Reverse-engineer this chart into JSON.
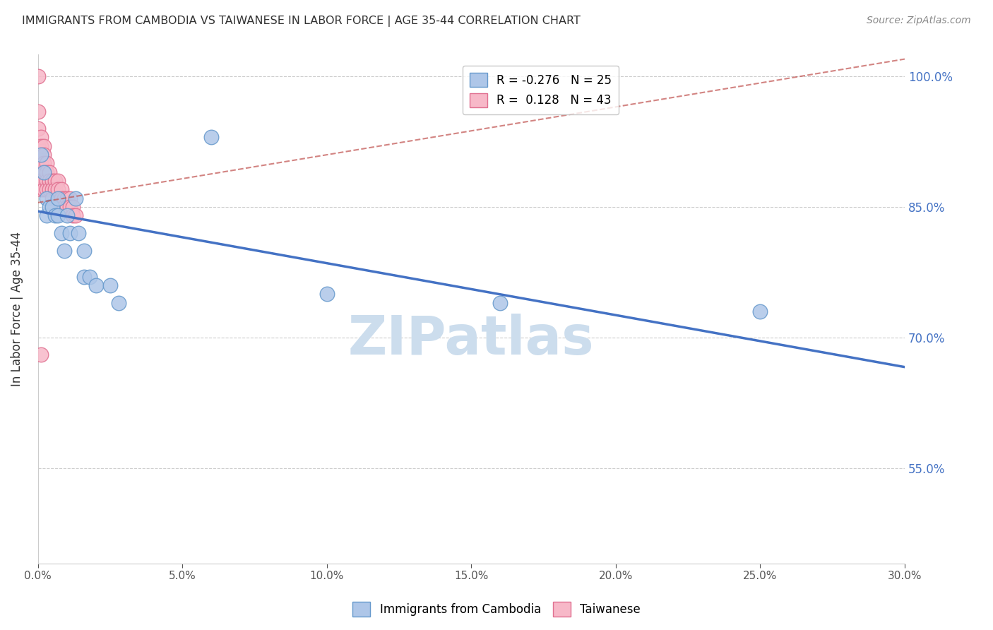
{
  "title": "IMMIGRANTS FROM CAMBODIA VS TAIWANESE IN LABOR FORCE | AGE 35-44 CORRELATION CHART",
  "source": "Source: ZipAtlas.com",
  "ylabel": "In Labor Force | Age 35-44",
  "xlim": [
    0.0,
    0.3
  ],
  "ylim": [
    0.44,
    1.025
  ],
  "yticks": [
    0.55,
    0.7,
    0.85,
    1.0
  ],
  "xticks": [
    0.0,
    0.05,
    0.1,
    0.15,
    0.2,
    0.25,
    0.3
  ],
  "legend_r_cambodia": "-0.276",
  "legend_n_cambodia": "25",
  "legend_r_taiwanese": "0.128",
  "legend_n_taiwanese": "43",
  "cambodia_color": "#aec6e8",
  "cambodia_edge": "#6699cc",
  "taiwanese_color": "#f7b8c8",
  "taiwanese_edge": "#e07090",
  "trendline_cambodia_color": "#4472c4",
  "trendline_taiwanese_color": "#c0504d",
  "cambodia_x": [
    0.001,
    0.002,
    0.003,
    0.003,
    0.004,
    0.005,
    0.006,
    0.007,
    0.007,
    0.008,
    0.009,
    0.01,
    0.011,
    0.013,
    0.014,
    0.016,
    0.016,
    0.018,
    0.02,
    0.025,
    0.028,
    0.06,
    0.1,
    0.16,
    0.25
  ],
  "cambodia_y": [
    0.91,
    0.89,
    0.86,
    0.84,
    0.85,
    0.85,
    0.84,
    0.86,
    0.84,
    0.82,
    0.8,
    0.84,
    0.82,
    0.86,
    0.82,
    0.8,
    0.77,
    0.77,
    0.76,
    0.76,
    0.74,
    0.93,
    0.75,
    0.74,
    0.73
  ],
  "taiwanese_x": [
    0.0,
    0.0,
    0.0,
    0.0,
    0.0,
    0.001,
    0.001,
    0.001,
    0.001,
    0.001,
    0.001,
    0.001,
    0.002,
    0.002,
    0.002,
    0.002,
    0.002,
    0.003,
    0.003,
    0.003,
    0.003,
    0.004,
    0.004,
    0.004,
    0.005,
    0.005,
    0.005,
    0.006,
    0.006,
    0.007,
    0.007,
    0.008,
    0.008,
    0.009,
    0.009,
    0.01,
    0.01,
    0.011,
    0.011,
    0.012,
    0.012,
    0.013,
    0.001
  ],
  "taiwanese_y": [
    1.0,
    0.96,
    0.94,
    0.92,
    0.89,
    0.93,
    0.92,
    0.91,
    0.9,
    0.89,
    0.88,
    0.87,
    0.92,
    0.91,
    0.9,
    0.88,
    0.87,
    0.9,
    0.89,
    0.88,
    0.87,
    0.89,
    0.88,
    0.87,
    0.88,
    0.87,
    0.86,
    0.88,
    0.87,
    0.88,
    0.87,
    0.87,
    0.86,
    0.86,
    0.85,
    0.86,
    0.85,
    0.86,
    0.85,
    0.85,
    0.84,
    0.84,
    0.68
  ],
  "trendline_cam_x0": 0.0,
  "trendline_cam_y0": 0.845,
  "trendline_cam_x1": 0.3,
  "trendline_cam_y1": 0.666,
  "trendline_tai_x0": 0.0,
  "trendline_tai_y0": 0.855,
  "trendline_tai_x1": 0.3,
  "trendline_tai_y1": 1.02,
  "background_color": "#ffffff",
  "grid_color": "#cccccc",
  "title_color": "#333333",
  "axis_label_color": "#333333",
  "right_axis_color": "#4472c4",
  "watermark": "ZIPatlas",
  "watermark_color": "#ccdded"
}
